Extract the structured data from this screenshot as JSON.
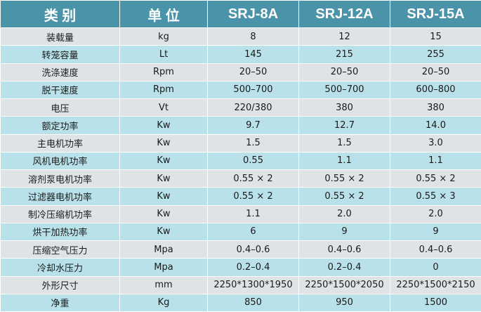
{
  "table": {
    "header": [
      "类 别",
      "单 位",
      "SRJ-8A",
      "SRJ-12A",
      "SRJ-15A"
    ],
    "rows": [
      [
        "装载量",
        "kg",
        "8",
        "12",
        "15"
      ],
      [
        "转笼容量",
        "Lt",
        "145",
        "215",
        "255"
      ],
      [
        "洗涤速度",
        "Rpm",
        "20–50",
        "20–50",
        "20–50"
      ],
      [
        "脱干速度",
        "Rpm",
        "500–700",
        "500–700",
        "600–800"
      ],
      [
        "电压",
        "Vt",
        "220/380",
        "380",
        "380"
      ],
      [
        "额定功率",
        "Kw",
        "9.7",
        "12.7",
        "14.0"
      ],
      [
        "主电机功率",
        "Kw",
        "1.5",
        "1.5",
        "3.0"
      ],
      [
        "风机电机功率",
        "Kw",
        "0.55",
        "1.1",
        "1.1"
      ],
      [
        "溶剂泵电机功率",
        "Kw",
        "0.55 × 2",
        "0.55 × 2",
        "0.55 × 2"
      ],
      [
        "过滤器电机功率",
        "Kw",
        "0.55 × 2",
        "0.55 × 2",
        "0.55 × 3"
      ],
      [
        "制冷压缩机功率",
        "Kw",
        "1.1",
        "2.0",
        "2.0"
      ],
      [
        "烘干加热功率",
        "Kw",
        "6",
        "9",
        "9"
      ],
      [
        "压缩空气压力",
        "Mpa",
        "0.4–0.6",
        "0.4–0.6",
        "0.4–0.6"
      ],
      [
        "冷却水压力",
        "Mpa",
        "0.2–0.4",
        "0.2–0.4",
        "0"
      ],
      [
        "外形尺寸",
        "mm",
        "2250*1300*1950",
        "2250*1500*2050",
        "2250*1500*2150"
      ],
      [
        "净重",
        "Kg",
        "850",
        "950",
        "1500"
      ]
    ]
  }
}
